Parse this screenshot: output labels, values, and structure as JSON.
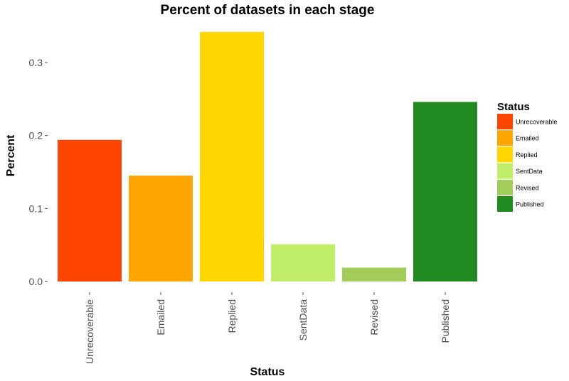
{
  "chart_data": {
    "type": "bar",
    "title": "Percent of datasets in each stage",
    "xlabel": "Status",
    "ylabel": "Percent",
    "categories": [
      "Unrecoverable",
      "Emailed",
      "Replied",
      "SentData",
      "Revised",
      "Published"
    ],
    "values": [
      0.194,
      0.145,
      0.342,
      0.051,
      0.019,
      0.246
    ],
    "colors": [
      "#FF4500",
      "#FFA500",
      "#FFD700",
      "#C1EE6A",
      "#A2CD5A",
      "#228B22"
    ],
    "ylim": [
      0,
      0.36
    ],
    "yticks": [
      0.0,
      0.1,
      0.2,
      0.3
    ],
    "ytick_labels": [
      "0.0",
      "0.1",
      "0.2",
      "0.3"
    ],
    "grid": false,
    "legend": {
      "title": "Status",
      "position": "right",
      "entries": [
        "Unrecoverable",
        "Emailed",
        "Replied",
        "SentData",
        "Revised",
        "Published"
      ]
    }
  }
}
